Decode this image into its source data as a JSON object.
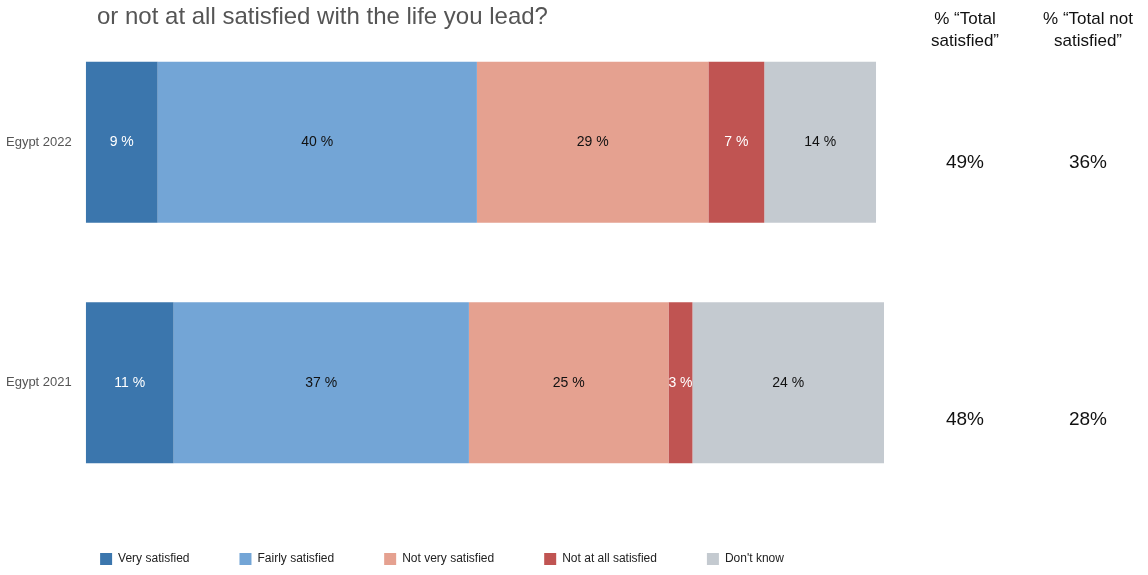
{
  "chart_data": {
    "type": "bar",
    "orientation": "horizontal",
    "stacked": true,
    "title": "or not at all satisfied with the life you lead?",
    "categories": [
      "Egypt 2022",
      "Egypt 2021"
    ],
    "series": [
      {
        "name": "Very satisfied",
        "color": "#3b76ad",
        "values": [
          9,
          11
        ],
        "value_labels": [
          "9 %",
          "11 %"
        ]
      },
      {
        "name": "Fairly satisfied",
        "color": "#73a5d6",
        "values": [
          40,
          37
        ],
        "value_labels": [
          "40 %",
          "37 %"
        ]
      },
      {
        "name": "Not very satisfied",
        "color": "#e5a190",
        "values": [
          29,
          25
        ],
        "value_labels": [
          "29 %",
          "25 %"
        ]
      },
      {
        "name": "Not at all satisfied",
        "color": "#c05452",
        "values": [
          7,
          3
        ],
        "value_labels": [
          "7 %",
          "3 %"
        ]
      },
      {
        "name": "Don't know",
        "color": "#c4cad0",
        "values": [
          14,
          24
        ],
        "value_labels": [
          "14 %",
          "24 %"
        ]
      }
    ],
    "xlim": [
      0,
      100
    ],
    "tick_labels": "y",
    "grid": false,
    "legend": "bottom",
    "annotations": [
      "% “Total satisfied”",
      "% “Total not satisfied”",
      "49%",
      "36%",
      "48%",
      "28%"
    ]
  }
}
